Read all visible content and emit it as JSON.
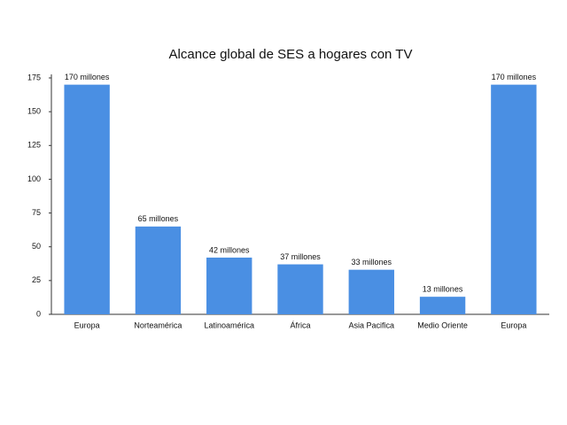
{
  "chart_data": {
    "type": "bar",
    "title": "Alcance global de SES a hogares con TV",
    "categories": [
      "Europa",
      "Norteamérica",
      "Latinoamérica",
      "África",
      "Asia Pacifica",
      "Medio Oriente",
      "Europa"
    ],
    "values": [
      170,
      65,
      42,
      37,
      33,
      13,
      170
    ],
    "value_labels": [
      "170 millones",
      "65 millones",
      "42 millones",
      "37 millones",
      "33 millones",
      "13 millones",
      "170 millones"
    ],
    "color": "#4a8fe3",
    "ylim": [
      0,
      175
    ],
    "yticks": [
      0,
      25,
      50,
      75,
      100,
      125,
      150,
      175
    ],
    "grid": false
  }
}
